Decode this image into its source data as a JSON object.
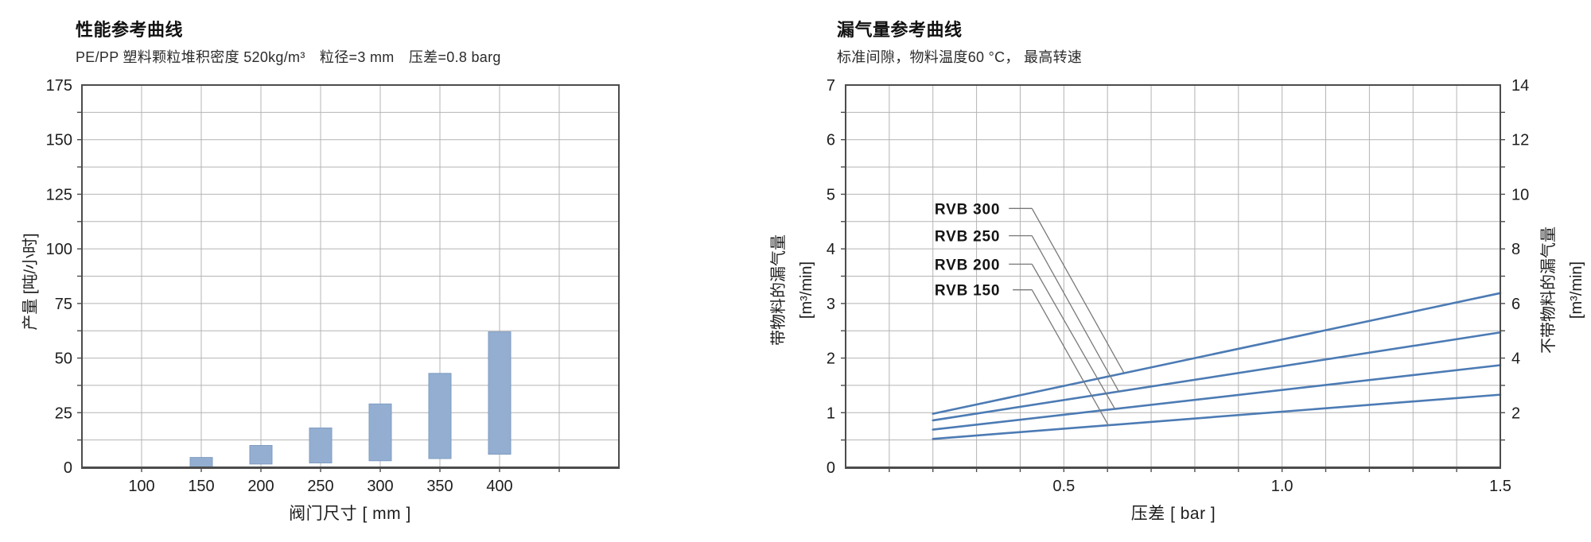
{
  "page": {
    "background": "#ffffff"
  },
  "colors": {
    "bar_fill": "#93aed1",
    "bar_stroke": "#7f9cc2",
    "line_blue": "#4c7bb4",
    "grid": "#b4b4b4",
    "plot_border": "#4c4c4c",
    "leader": "#787878",
    "text": "#1d1d1d"
  },
  "chart_data": [
    {
      "type": "bar",
      "bar_style": "floating-range",
      "title": "性能参考曲线",
      "subtitle": "PE/PP 塑料颗粒堆积密度 520kg/m³　粒径=3 mm　压差=0.8 barg",
      "xlabel": "阀门尺寸 [ mm ]",
      "ylabel": "产量 [吨/小时]",
      "xlim": [
        50,
        500
      ],
      "ylim": [
        0,
        175
      ],
      "x_grid_step": 50,
      "y_grid_step": 12.5,
      "x_tick_labels": [
        100,
        150,
        200,
        250,
        300,
        350,
        400
      ],
      "y_tick_labels": [
        0,
        25,
        50,
        75,
        100,
        125,
        150,
        175
      ],
      "categories": [
        150,
        200,
        250,
        300,
        350,
        400
      ],
      "bar_ranges": [
        [
          0,
          4.5
        ],
        [
          1.5,
          10
        ],
        [
          2,
          18
        ],
        [
          3,
          29
        ],
        [
          4,
          43
        ],
        [
          6,
          62
        ]
      ],
      "grid": "on"
    },
    {
      "type": "line",
      "title": "漏气量参考曲线",
      "subtitle": "标准间隙，物料温度60 °C， 最高转速",
      "xlabel": "压差 [ bar ]",
      "ylabel_left": "带物料的漏气量",
      "ylabel_left_unit": "[m³/min]",
      "ylabel_right": "不带物料的漏气量",
      "ylabel_right_unit": "[m³/min]",
      "xlim": [
        0,
        1.5
      ],
      "ylim_left": [
        0,
        7
      ],
      "ylim_right": [
        0,
        14
      ],
      "x_grid_step": 0.1,
      "y_grid_step": 0.5,
      "x_tick_labels": [
        "0.5",
        "1.0",
        "1.5"
      ],
      "x_tick_values": [
        0.5,
        1.0,
        1.5
      ],
      "y_tick_labels_left": [
        0,
        1,
        2,
        3,
        4,
        5,
        6,
        7
      ],
      "y_tick_labels_right": [
        2,
        4,
        6,
        8,
        10,
        12,
        14
      ],
      "grid": "on",
      "legend_position": "inline-labels",
      "series": [
        {
          "name": "RVB 300",
          "points": [
            [
              0.2,
              0.98
            ],
            [
              1.5,
              3.19
            ]
          ]
        },
        {
          "name": "RVB 250",
          "points": [
            [
              0.2,
              0.86
            ],
            [
              1.5,
              2.47
            ]
          ]
        },
        {
          "name": "RVB 200",
          "points": [
            [
              0.2,
              0.69
            ],
            [
              1.5,
              1.87
            ]
          ]
        },
        {
          "name": "RVB 150",
          "points": [
            [
              0.2,
              0.52
            ],
            [
              1.5,
              1.33
            ]
          ]
        }
      ],
      "series_labels": [
        {
          "text": "RVB 300",
          "x": 0.204,
          "y": 4.74,
          "dash": [
            0.374,
            0.427
          ],
          "attach_x": 0.638
        },
        {
          "text": "RVB 250",
          "x": 0.204,
          "y": 4.24,
          "dash": [
            0.374,
            0.427
          ],
          "attach_x": 0.626
        },
        {
          "text": "RVB 200",
          "x": 0.204,
          "y": 3.72,
          "dash": [
            0.374,
            0.427
          ],
          "attach_x": 0.617
        },
        {
          "text": "RVB 150",
          "x": 0.204,
          "y": 3.25,
          "dash": [
            0.383,
            0.427
          ],
          "attach_x": 0.602
        }
      ]
    }
  ]
}
